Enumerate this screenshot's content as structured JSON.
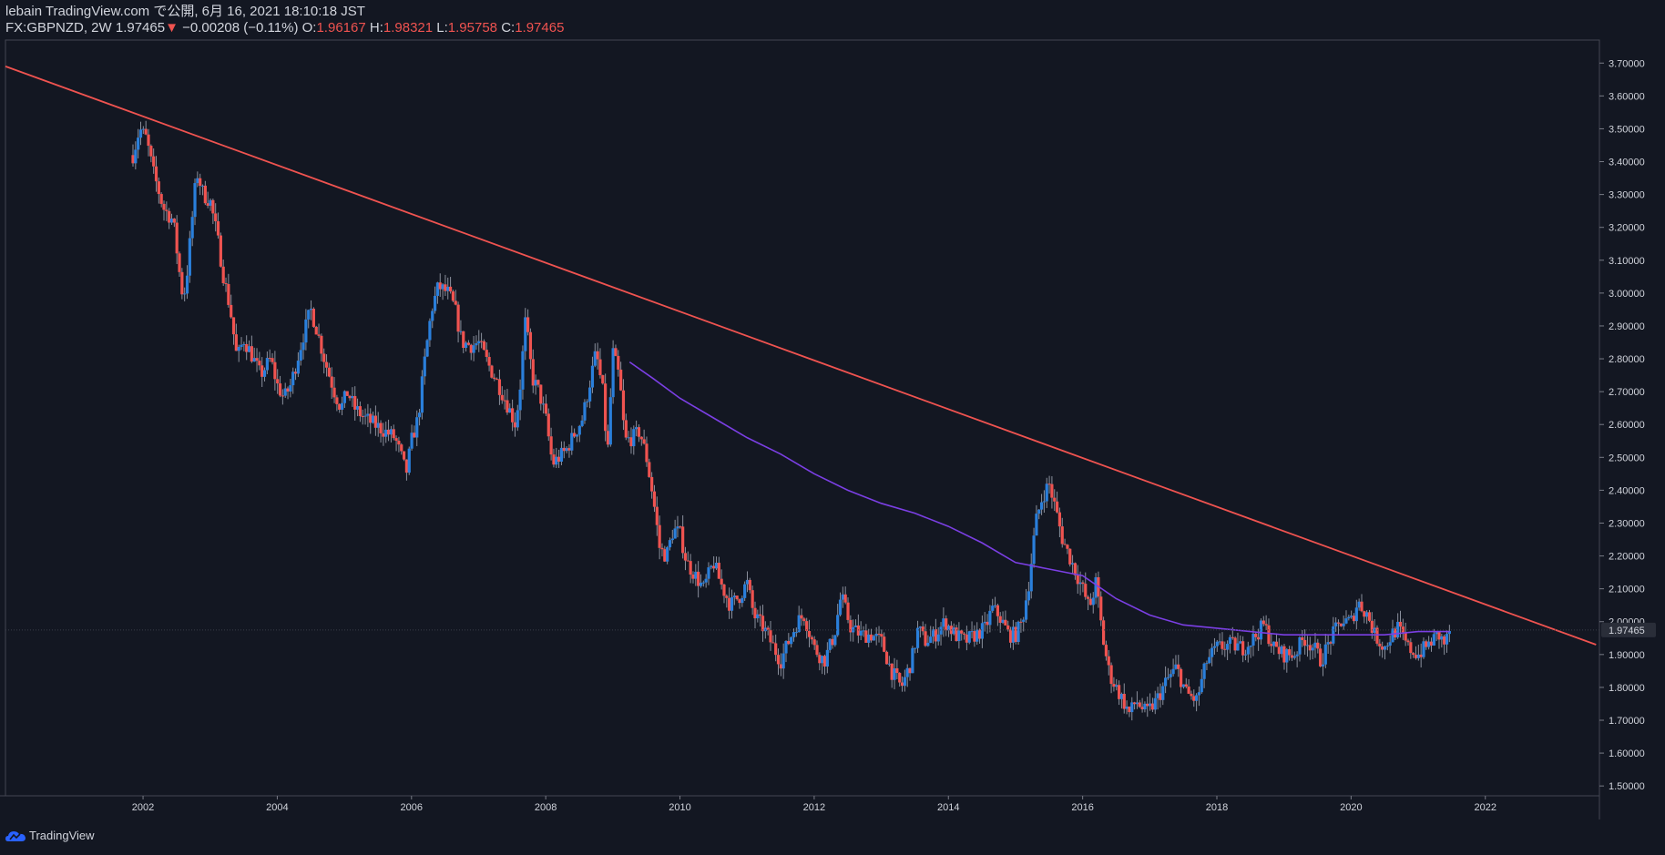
{
  "header": {
    "line1": "lebain TradingView.com で公開, 6月 16, 2021 18:10:18 JST",
    "symbol": "FX:GBPNZD, 2W",
    "last": "1.97465",
    "change": "−0.00208 (−0.11%)",
    "o_label": "O:",
    "o_value": "1.96167",
    "h_label": "H:",
    "h_value": "1.98321",
    "l_label": "L:",
    "l_value": "1.95758",
    "c_label": "C:",
    "c_value": "1.97465"
  },
  "footer": {
    "brand": "TradingView"
  },
  "colors": {
    "background": "#131722",
    "up": "#2a7fdb",
    "down": "#ef5350",
    "trendline": "#ef5350",
    "ma": "#7b3fe4",
    "price_badge": "#2a2e39"
  },
  "chart_data": {
    "type": "candlestick",
    "symbol": "FX:GBPNZD",
    "interval": "2W",
    "x_ticks": [
      "2002",
      "2004",
      "2006",
      "2008",
      "2010",
      "2012",
      "2014",
      "2016",
      "2018",
      "2020",
      "2022"
    ],
    "y_ticks": [
      "1.50000",
      "1.60000",
      "1.70000",
      "1.80000",
      "1.90000",
      "2.00000",
      "2.10000",
      "2.20000",
      "2.30000",
      "2.40000",
      "2.50000",
      "2.60000",
      "2.70000",
      "2.80000",
      "2.90000",
      "3.00000",
      "3.10000",
      "3.20000",
      "3.30000",
      "3.40000",
      "3.50000",
      "3.60000",
      "3.70000"
    ],
    "ylim": [
      1.47,
      3.77
    ],
    "xlim": [
      1999.95,
      2023.7
    ],
    "last_price": "1.97465",
    "price_path": [
      [
        2001.85,
        3.42
      ],
      [
        2001.95,
        3.5
      ],
      [
        2002.05,
        3.47
      ],
      [
        2002.15,
        3.37
      ],
      [
        2002.3,
        3.26
      ],
      [
        2002.45,
        3.22
      ],
      [
        2002.55,
        3.05
      ],
      [
        2002.6,
        2.98
      ],
      [
        2002.65,
        3.05
      ],
      [
        2002.72,
        3.2
      ],
      [
        2002.8,
        3.37
      ],
      [
        2002.9,
        3.3
      ],
      [
        2003.0,
        3.28
      ],
      [
        2003.1,
        3.18
      ],
      [
        2003.2,
        3.05
      ],
      [
        2003.3,
        2.95
      ],
      [
        2003.4,
        2.8
      ],
      [
        2003.5,
        2.86
      ],
      [
        2003.6,
        2.82
      ],
      [
        2003.75,
        2.75
      ],
      [
        2003.9,
        2.8
      ],
      [
        2004.0,
        2.72
      ],
      [
        2004.1,
        2.68
      ],
      [
        2004.2,
        2.72
      ],
      [
        2004.3,
        2.8
      ],
      [
        2004.4,
        2.88
      ],
      [
        2004.5,
        2.95
      ],
      [
        2004.6,
        2.88
      ],
      [
        2004.7,
        2.8
      ],
      [
        2004.85,
        2.7
      ],
      [
        2004.95,
        2.65
      ],
      [
        2005.05,
        2.7
      ],
      [
        2005.15,
        2.65
      ],
      [
        2005.3,
        2.62
      ],
      [
        2005.45,
        2.6
      ],
      [
        2005.6,
        2.58
      ],
      [
        2005.75,
        2.56
      ],
      [
        2005.85,
        2.5
      ],
      [
        2005.92,
        2.45
      ],
      [
        2006.0,
        2.55
      ],
      [
        2006.1,
        2.62
      ],
      [
        2006.2,
        2.8
      ],
      [
        2006.3,
        2.95
      ],
      [
        2006.4,
        3.02
      ],
      [
        2006.55,
        3.0
      ],
      [
        2006.65,
        2.95
      ],
      [
        2006.75,
        2.85
      ],
      [
        2006.9,
        2.84
      ],
      [
        2007.0,
        2.85
      ],
      [
        2007.15,
        2.78
      ],
      [
        2007.3,
        2.72
      ],
      [
        2007.45,
        2.65
      ],
      [
        2007.55,
        2.6
      ],
      [
        2007.62,
        2.72
      ],
      [
        2007.7,
        2.92
      ],
      [
        2007.8,
        2.74
      ],
      [
        2007.9,
        2.7
      ],
      [
        2008.0,
        2.62
      ],
      [
        2008.1,
        2.48
      ],
      [
        2008.2,
        2.5
      ],
      [
        2008.3,
        2.52
      ],
      [
        2008.45,
        2.58
      ],
      [
        2008.55,
        2.62
      ],
      [
        2008.65,
        2.72
      ],
      [
        2008.75,
        2.82
      ],
      [
        2008.85,
        2.7
      ],
      [
        2008.92,
        2.5
      ],
      [
        2009.0,
        2.82
      ],
      [
        2009.1,
        2.74
      ],
      [
        2009.18,
        2.55
      ],
      [
        2009.3,
        2.56
      ],
      [
        2009.4,
        2.58
      ],
      [
        2009.5,
        2.5
      ],
      [
        2009.6,
        2.38
      ],
      [
        2009.7,
        2.22
      ],
      [
        2009.8,
        2.2
      ],
      [
        2009.9,
        2.28
      ],
      [
        2010.0,
        2.27
      ],
      [
        2010.1,
        2.18
      ],
      [
        2010.2,
        2.15
      ],
      [
        2010.35,
        2.1
      ],
      [
        2010.5,
        2.18
      ],
      [
        2010.6,
        2.12
      ],
      [
        2010.75,
        2.05
      ],
      [
        2010.9,
        2.08
      ],
      [
        2011.0,
        2.12
      ],
      [
        2011.1,
        2.02
      ],
      [
        2011.25,
        1.98
      ],
      [
        2011.4,
        1.92
      ],
      [
        2011.5,
        1.88
      ],
      [
        2011.6,
        1.93
      ],
      [
        2011.75,
        2.0
      ],
      [
        2011.85,
        2.02
      ],
      [
        2012.0,
        1.92
      ],
      [
        2012.15,
        1.88
      ],
      [
        2012.3,
        1.96
      ],
      [
        2012.4,
        2.08
      ],
      [
        2012.55,
        1.98
      ],
      [
        2012.7,
        1.96
      ],
      [
        2012.85,
        1.96
      ],
      [
        2013.0,
        1.94
      ],
      [
        2013.15,
        1.85
      ],
      [
        2013.3,
        1.8
      ],
      [
        2013.45,
        1.88
      ],
      [
        2013.55,
        1.98
      ],
      [
        2013.65,
        1.94
      ],
      [
        2013.8,
        1.96
      ],
      [
        2013.95,
        2.0
      ],
      [
        2014.1,
        1.96
      ],
      [
        2014.25,
        1.94
      ],
      [
        2014.4,
        1.96
      ],
      [
        2014.55,
        1.98
      ],
      [
        2014.65,
        2.04
      ],
      [
        2014.75,
        2.02
      ],
      [
        2014.9,
        1.96
      ],
      [
        2015.0,
        1.96
      ],
      [
        2015.1,
        2.0
      ],
      [
        2015.2,
        2.12
      ],
      [
        2015.3,
        2.3
      ],
      [
        2015.4,
        2.38
      ],
      [
        2015.5,
        2.42
      ],
      [
        2015.6,
        2.34
      ],
      [
        2015.7,
        2.25
      ],
      [
        2015.8,
        2.2
      ],
      [
        2015.9,
        2.15
      ],
      [
        2016.0,
        2.1
      ],
      [
        2016.1,
        2.04
      ],
      [
        2016.2,
        2.12
      ],
      [
        2016.3,
        1.95
      ],
      [
        2016.4,
        1.84
      ],
      [
        2016.55,
        1.78
      ],
      [
        2016.7,
        1.72
      ],
      [
        2016.8,
        1.76
      ],
      [
        2016.95,
        1.72
      ],
      [
        2017.1,
        1.76
      ],
      [
        2017.25,
        1.82
      ],
      [
        2017.4,
        1.86
      ],
      [
        2017.55,
        1.78
      ],
      [
        2017.7,
        1.76
      ],
      [
        2017.85,
        1.88
      ],
      [
        2018.0,
        1.92
      ],
      [
        2018.2,
        1.93
      ],
      [
        2018.4,
        1.92
      ],
      [
        2018.55,
        1.95
      ],
      [
        2018.7,
        1.99
      ],
      [
        2018.85,
        1.92
      ],
      [
        2019.0,
        1.9
      ],
      [
        2019.15,
        1.9
      ],
      [
        2019.3,
        1.95
      ],
      [
        2019.45,
        1.92
      ],
      [
        2019.55,
        1.88
      ],
      [
        2019.7,
        1.95
      ],
      [
        2019.85,
        2.0
      ],
      [
        2020.0,
        2.0
      ],
      [
        2020.1,
        2.06
      ],
      [
        2020.25,
        2.02
      ],
      [
        2020.35,
        1.96
      ],
      [
        2020.5,
        1.92
      ],
      [
        2020.6,
        1.96
      ],
      [
        2020.7,
        1.98
      ],
      [
        2020.85,
        1.92
      ],
      [
        2021.0,
        1.9
      ],
      [
        2021.1,
        1.92
      ],
      [
        2021.2,
        1.94
      ],
      [
        2021.3,
        1.96
      ],
      [
        2021.4,
        1.93
      ],
      [
        2021.47,
        1.97465
      ]
    ],
    "moving_average": [
      [
        2009.25,
        2.79
      ],
      [
        2009.6,
        2.74
      ],
      [
        2010.0,
        2.68
      ],
      [
        2010.5,
        2.62
      ],
      [
        2011.0,
        2.56
      ],
      [
        2011.5,
        2.51
      ],
      [
        2012.0,
        2.45
      ],
      [
        2012.5,
        2.4
      ],
      [
        2013.0,
        2.36
      ],
      [
        2013.5,
        2.33
      ],
      [
        2014.0,
        2.29
      ],
      [
        2014.5,
        2.24
      ],
      [
        2015.0,
        2.18
      ],
      [
        2015.5,
        2.16
      ],
      [
        2016.0,
        2.14
      ],
      [
        2016.5,
        2.07
      ],
      [
        2017.0,
        2.02
      ],
      [
        2017.5,
        1.99
      ],
      [
        2018.0,
        1.98
      ],
      [
        2018.5,
        1.97
      ],
      [
        2019.0,
        1.96
      ],
      [
        2019.5,
        1.96
      ],
      [
        2020.0,
        1.96
      ],
      [
        2020.5,
        1.96
      ],
      [
        2021.0,
        1.97
      ],
      [
        2021.47,
        1.97
      ]
    ],
    "trendline": [
      [
        1999.95,
        3.69
      ],
      [
        2023.65,
        1.93
      ]
    ]
  }
}
